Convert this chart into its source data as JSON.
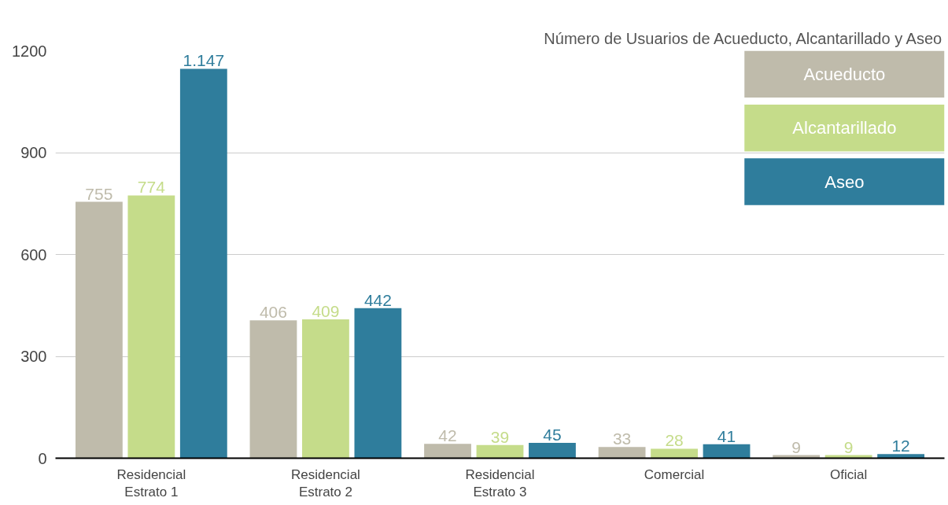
{
  "chart_data": {
    "type": "bar",
    "title": "Número de Usuarios de Acueducto, Alcantarillado y Aseo",
    "categories": [
      "Residencial\nEstrato 1",
      "Residencial\nEstrato 2",
      "Residencial\nEstrato 3",
      "Comercial",
      "Oficial"
    ],
    "series": [
      {
        "name": "Acueducto",
        "color": "#bfbbab",
        "values": [
          755,
          406,
          42,
          33,
          9
        ],
        "value_labels": [
          "755",
          "406",
          "42",
          "33",
          "9"
        ]
      },
      {
        "name": "Alcantarillado",
        "color": "#c5dc8a",
        "values": [
          774,
          409,
          39,
          28,
          9
        ],
        "value_labels": [
          "774",
          "409",
          "39",
          "28",
          "9"
        ]
      },
      {
        "name": "Aseo",
        "color": "#2f7d9c",
        "values": [
          1147,
          442,
          45,
          41,
          12
        ],
        "value_labels": [
          "1.147",
          "442",
          "45",
          "41",
          "12"
        ]
      }
    ],
    "ylim": [
      0,
      1200
    ],
    "yticks": [
      0,
      300,
      600,
      900,
      1200
    ],
    "grid": "y",
    "legend": "top right"
  }
}
